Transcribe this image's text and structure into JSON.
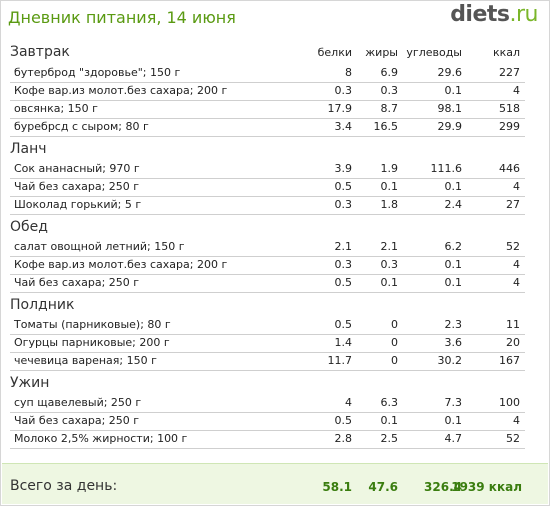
{
  "header": {
    "title": "Дневник питания, 14 июня",
    "logo_main": "diets",
    "logo_suffix": ".ru"
  },
  "columns": [
    "белки",
    "жиры",
    "углеводы",
    "ккал"
  ],
  "meals": [
    {
      "title": "Завтрак",
      "items": [
        {
          "name": "бутерброд \"здоровье\"; 150 г",
          "p": "8",
          "f": "6.9",
          "c": "29.6",
          "k": "227"
        },
        {
          "name": "Кофе вар.из молот.без сахара; 200 г",
          "p": "0.3",
          "f": "0.3",
          "c": "0.1",
          "k": "4"
        },
        {
          "name": "овсянка; 150 г",
          "p": "17.9",
          "f": "8.7",
          "c": "98.1",
          "k": "518"
        },
        {
          "name": "буребрсд с сыром; 80 г",
          "p": "3.4",
          "f": "16.5",
          "c": "29.9",
          "k": "299"
        }
      ]
    },
    {
      "title": "Ланч",
      "items": [
        {
          "name": "Сок ананасный; 970 г",
          "p": "3.9",
          "f": "1.9",
          "c": "111.6",
          "k": "446"
        },
        {
          "name": "Чай без сахара; 250 г",
          "p": "0.5",
          "f": "0.1",
          "c": "0.1",
          "k": "4"
        },
        {
          "name": "Шоколад горький; 5 г",
          "p": "0.3",
          "f": "1.8",
          "c": "2.4",
          "k": "27"
        }
      ]
    },
    {
      "title": "Обед",
      "items": [
        {
          "name": "салат овощной летний; 150 г",
          "p": "2.1",
          "f": "2.1",
          "c": "6.2",
          "k": "52"
        },
        {
          "name": "Кофе вар.из молот.без сахара; 200 г",
          "p": "0.3",
          "f": "0.3",
          "c": "0.1",
          "k": "4"
        },
        {
          "name": "Чай без сахара; 250 г",
          "p": "0.5",
          "f": "0.1",
          "c": "0.1",
          "k": "4"
        }
      ]
    },
    {
      "title": "Полдник",
      "items": [
        {
          "name": "Томаты (парниковые); 80 г",
          "p": "0.5",
          "f": "0",
          "c": "2.3",
          "k": "11"
        },
        {
          "name": "Огурцы парниковые; 200 г",
          "p": "1.4",
          "f": "0",
          "c": "3.6",
          "k": "20"
        },
        {
          "name": "чечевица вареная; 150 г",
          "p": "11.7",
          "f": "0",
          "c": "30.2",
          "k": "167"
        }
      ]
    },
    {
      "title": "Ужин",
      "items": [
        {
          "name": "суп щавелевый; 250 г",
          "p": "4",
          "f": "6.3",
          "c": "7.3",
          "k": "100"
        },
        {
          "name": "Чай без сахара; 250 г",
          "p": "0.5",
          "f": "0.1",
          "c": "0.1",
          "k": "4"
        },
        {
          "name": "Молоко 2,5% жирности; 100 г",
          "p": "2.8",
          "f": "2.5",
          "c": "4.7",
          "k": "52"
        }
      ]
    }
  ],
  "totals": {
    "label": "Всего за день:",
    "p": "58.1",
    "f": "47.6",
    "c": "326.4",
    "k": "1939 ккал"
  }
}
